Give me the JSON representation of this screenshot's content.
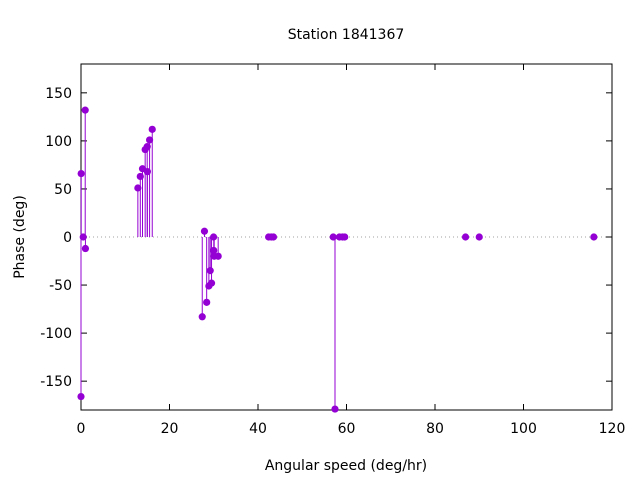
{
  "chart_data": {
    "type": "scatter",
    "style": "impulses",
    "title": "Station 1841367",
    "xlabel": "Angular speed (deg/hr)",
    "ylabel": "Phase (deg)",
    "xlim": [
      0,
      120
    ],
    "ylim": [
      -180,
      180
    ],
    "xticks": [
      0,
      20,
      40,
      60,
      80,
      100,
      120
    ],
    "yticks": [
      -150,
      -100,
      -50,
      0,
      50,
      100,
      150
    ],
    "zero_line": true,
    "grid": false,
    "legend": "none",
    "color": "#9400d3",
    "points": [
      {
        "x": 0.0,
        "y": -166
      },
      {
        "x": 0.04,
        "y": 66
      },
      {
        "x": 0.5,
        "y": 0
      },
      {
        "x": 0.95,
        "y": 132
      },
      {
        "x": 1.0,
        "y": -12
      },
      {
        "x": 12.85,
        "y": 51
      },
      {
        "x": 13.4,
        "y": 63
      },
      {
        "x": 13.9,
        "y": 71
      },
      {
        "x": 14.5,
        "y": 91
      },
      {
        "x": 14.96,
        "y": 94
      },
      {
        "x": 15.0,
        "y": 68
      },
      {
        "x": 15.5,
        "y": 101
      },
      {
        "x": 16.1,
        "y": 112
      },
      {
        "x": 27.4,
        "y": -83
      },
      {
        "x": 27.9,
        "y": 6
      },
      {
        "x": 28.4,
        "y": -68
      },
      {
        "x": 28.9,
        "y": -51
      },
      {
        "x": 29.2,
        "y": -35
      },
      {
        "x": 29.5,
        "y": -48
      },
      {
        "x": 29.96,
        "y": 0
      },
      {
        "x": 30.0,
        "y": -14
      },
      {
        "x": 30.1,
        "y": -20
      },
      {
        "x": 31.0,
        "y": -20
      },
      {
        "x": 42.4,
        "y": 0
      },
      {
        "x": 43.0,
        "y": 0
      },
      {
        "x": 43.5,
        "y": 0
      },
      {
        "x": 57.0,
        "y": 0
      },
      {
        "x": 57.4,
        "y": -179
      },
      {
        "x": 58.4,
        "y": 0
      },
      {
        "x": 59.1,
        "y": 0
      },
      {
        "x": 59.6,
        "y": 0
      },
      {
        "x": 86.9,
        "y": 0
      },
      {
        "x": 90.0,
        "y": 0
      },
      {
        "x": 115.9,
        "y": 0
      }
    ]
  }
}
